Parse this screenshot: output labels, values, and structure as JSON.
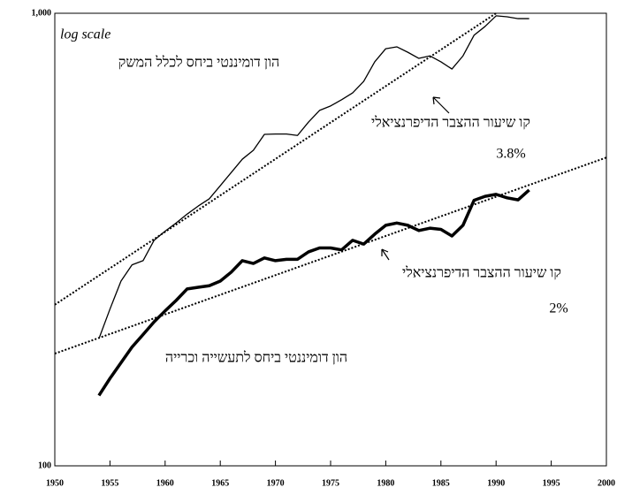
{
  "chart_data": {
    "type": "line",
    "annotations": [
      "log scale",
      "הון דומיננטי ביחס לכלל המשק",
      "קו שיעור ההצבר הדיפרנציאלי",
      "3.8%",
      "קו שיעור ההצבר הדיפרנציאלי",
      "2%",
      "הון דומיננטי ביחס לתעשייה וכרייה"
    ],
    "log_scale": true,
    "xlim": [
      1950,
      2000
    ],
    "xticks": [
      1950,
      1955,
      1960,
      1965,
      1970,
      1975,
      1980,
      1985,
      1990,
      1995,
      2000
    ],
    "ylim": [
      100,
      1000
    ],
    "yticks": [
      {
        "value": 100,
        "label": "100"
      },
      {
        "value": 1000,
        "label": "1,000"
      }
    ],
    "series": [
      {
        "color": "#000",
        "width": 1.3,
        "dash": "solid",
        "x": [
          1954,
          1955,
          1956,
          1957,
          1958,
          1959,
          1960,
          1961,
          1962,
          1963,
          1964,
          1965,
          1966,
          1967,
          1968,
          1969,
          1970,
          1971,
          1972,
          1973,
          1974,
          1975,
          1976,
          1977,
          1978,
          1979,
          1980,
          1981,
          1982,
          1983,
          1984,
          1985,
          1986,
          1987,
          1988,
          1989,
          1990,
          1991,
          1992,
          1993
        ],
        "values": [
          191,
          222,
          256,
          278,
          284,
          315,
          330,
          344,
          360,
          375,
          389,
          416,
          445,
          476,
          498,
          540,
          541,
          541,
          537,
          575,
          610,
          624,
          644,
          667,
          707,
          781,
          835,
          843,
          820,
          795,
          805,
          781,
          753,
          805,
          894,
          935,
          987,
          982,
          973,
          973
        ]
      },
      {
        "color": "#000",
        "width": 3.5,
        "dash": "solid",
        "x": [
          1954,
          1955,
          1956,
          1957,
          1958,
          1959,
          1960,
          1961,
          1962,
          1963,
          1964,
          1965,
          1966,
          1967,
          1968,
          1969,
          1970,
          1971,
          1972,
          1973,
          1974,
          1975,
          1976,
          1977,
          1978,
          1979,
          1980,
          1981,
          1982,
          1983,
          1984,
          1985,
          1986,
          1987,
          1988,
          1989,
          1990,
          1991,
          1992,
          1993
        ],
        "values": [
          143,
          156,
          169,
          183,
          195,
          208,
          220,
          232,
          246,
          248,
          250,
          256,
          268,
          284,
          280,
          288,
          284,
          286,
          286,
          297,
          303,
          303,
          300,
          315,
          309,
          325,
          340,
          344,
          340,
          331,
          335,
          333,
          322,
          340,
          386,
          394,
          398,
          391,
          387,
          407
        ]
      },
      {
        "color": "#000",
        "width": 2,
        "dash": "dotted",
        "x": [
          1950,
          1990
        ],
        "values": [
          227,
          1000
        ]
      },
      {
        "color": "#000",
        "width": 2,
        "dash": "dotted",
        "x": [
          1950,
          2000
        ],
        "values": [
          177,
          480
        ]
      }
    ]
  }
}
